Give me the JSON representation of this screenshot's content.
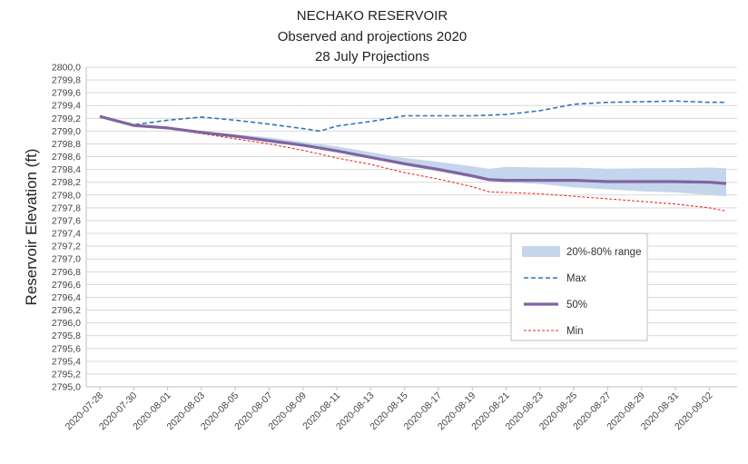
{
  "chart_data": {
    "type": "line",
    "title": [
      "NECHAKO RESERVOIR",
      "Observed and projections 2020",
      "28 July Projections"
    ],
    "ylabel": "Reservoir Elevation (ft)",
    "xlabel": "",
    "ylim": [
      2795.0,
      2800.0
    ],
    "ytick_step": 0.2,
    "grid": "horizontal-only",
    "legend_position": "right-center",
    "x_tick_labels": [
      "2020-07-28",
      "2020-07-30",
      "2020-08-01",
      "2020-08-03",
      "2020-08-05",
      "2020-08-07",
      "2020-08-09",
      "2020-08-11",
      "2020-08-13",
      "2020-08-15",
      "2020-08-17",
      "2020-08-19",
      "2020-08-21",
      "2020-08-23",
      "2020-08-25",
      "2020-08-27",
      "2020-08-29",
      "2020-08-31",
      "2020-09-02"
    ],
    "x_start": "2020-07-28",
    "x_end": "2020-09-03",
    "legend": [
      {
        "key": "range",
        "label": "20%-80% range"
      },
      {
        "key": "max",
        "label": "Max"
      },
      {
        "key": "p50",
        "label": "50%"
      },
      {
        "key": "min",
        "label": "Min"
      }
    ],
    "colors": {
      "max": "#2e75b6",
      "p50": "#8064a2",
      "min": "#e5322d",
      "range": "#c5d5eb"
    },
    "series": [
      {
        "key": "max",
        "x": [
          "2020-07-28",
          "2020-07-30",
          "2020-08-01",
          "2020-08-03",
          "2020-08-05",
          "2020-08-07",
          "2020-08-09",
          "2020-08-10",
          "2020-08-11",
          "2020-08-13",
          "2020-08-15",
          "2020-08-17",
          "2020-08-19",
          "2020-08-21",
          "2020-08-23",
          "2020-08-25",
          "2020-08-27",
          "2020-08-29",
          "2020-08-31",
          "2020-09-02",
          "2020-09-03"
        ],
        "y": [
          2799.23,
          2799.1,
          2799.17,
          2799.22,
          2799.17,
          2799.11,
          2799.04,
          2799.0,
          2799.08,
          2799.15,
          2799.24,
          2799.24,
          2799.24,
          2799.26,
          2799.32,
          2799.42,
          2799.45,
          2799.46,
          2799.47,
          2799.45,
          2799.45
        ]
      },
      {
        "key": "p50",
        "x": [
          "2020-07-28",
          "2020-07-30",
          "2020-08-01",
          "2020-08-03",
          "2020-08-05",
          "2020-08-07",
          "2020-08-09",
          "2020-08-11",
          "2020-08-13",
          "2020-08-15",
          "2020-08-17",
          "2020-08-19",
          "2020-08-20",
          "2020-08-21",
          "2020-08-23",
          "2020-08-25",
          "2020-08-27",
          "2020-08-29",
          "2020-08-31",
          "2020-09-02",
          "2020-09-03"
        ],
        "y": [
          2799.23,
          2799.09,
          2799.05,
          2798.98,
          2798.92,
          2798.85,
          2798.78,
          2798.69,
          2798.59,
          2798.49,
          2798.4,
          2798.3,
          2798.24,
          2798.23,
          2798.23,
          2798.23,
          2798.21,
          2798.21,
          2798.21,
          2798.2,
          2798.18
        ]
      },
      {
        "key": "min",
        "x": [
          "2020-07-28",
          "2020-07-30",
          "2020-08-01",
          "2020-08-03",
          "2020-08-05",
          "2020-08-07",
          "2020-08-09",
          "2020-08-11",
          "2020-08-13",
          "2020-08-15",
          "2020-08-17",
          "2020-08-19",
          "2020-08-20",
          "2020-08-21",
          "2020-08-23",
          "2020-08-25",
          "2020-08-27",
          "2020-08-29",
          "2020-08-31",
          "2020-09-02",
          "2020-09-03"
        ],
        "y": [
          2799.23,
          2799.09,
          2799.04,
          2798.96,
          2798.88,
          2798.8,
          2798.7,
          2798.58,
          2798.48,
          2798.35,
          2798.25,
          2798.13,
          2798.05,
          2798.04,
          2798.02,
          2797.98,
          2797.94,
          2797.9,
          2797.86,
          2797.8,
          2797.75
        ]
      }
    ],
    "range_band": {
      "x": [
        "2020-07-28",
        "2020-07-30",
        "2020-08-01",
        "2020-08-03",
        "2020-08-05",
        "2020-08-07",
        "2020-08-09",
        "2020-08-11",
        "2020-08-13",
        "2020-08-15",
        "2020-08-17",
        "2020-08-19",
        "2020-08-20",
        "2020-08-21",
        "2020-08-23",
        "2020-08-25",
        "2020-08-27",
        "2020-08-29",
        "2020-08-31",
        "2020-09-02",
        "2020-09-03"
      ],
      "low": [
        2799.23,
        2799.08,
        2799.04,
        2798.97,
        2798.91,
        2798.83,
        2798.76,
        2798.67,
        2798.57,
        2798.46,
        2798.37,
        2798.27,
        2798.22,
        2798.2,
        2798.17,
        2798.12,
        2798.09,
        2798.06,
        2798.04,
        2798.0,
        2797.98
      ],
      "high": [
        2799.23,
        2799.1,
        2799.06,
        2799.0,
        2798.95,
        2798.9,
        2798.83,
        2798.76,
        2798.67,
        2798.58,
        2798.52,
        2798.45,
        2798.41,
        2798.44,
        2798.43,
        2798.43,
        2798.41,
        2798.42,
        2798.42,
        2798.43,
        2798.42
      ]
    }
  }
}
